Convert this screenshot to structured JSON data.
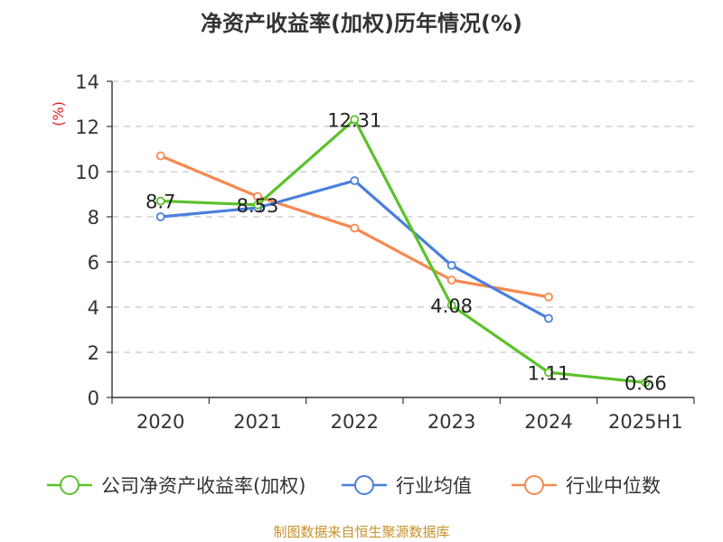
{
  "title": "净资产收益率(加权)历年情况(%)",
  "source": "制图数据来自恒生聚源数据库",
  "chart_data": {
    "type": "line",
    "title": "净资产收益率(加权)历年情况(%)",
    "ylabel": "(%)",
    "xlabel": "",
    "categories": [
      "2020",
      "2021",
      "2022",
      "2023",
      "2024",
      "2025H1"
    ],
    "ylim": [
      0,
      14
    ],
    "yticks": [
      0,
      2,
      4,
      6,
      8,
      10,
      12,
      14
    ],
    "grid": "horizontal dashed",
    "legend_position": "bottom",
    "series": [
      {
        "name": "公司净资产收益率(加权)",
        "color": "#5bc22a",
        "values": [
          8.7,
          8.53,
          12.31,
          4.08,
          1.11,
          0.66
        ],
        "labels": [
          "8.7",
          "8.53",
          "12.31",
          "4.08",
          "1.11",
          "0.66"
        ]
      },
      {
        "name": "行业均值",
        "color": "#4a7fdc",
        "values": [
          8.0,
          8.4,
          9.6,
          5.85,
          3.5,
          null
        ]
      },
      {
        "name": "行业中位数",
        "color": "#f5894f",
        "values": [
          10.7,
          8.9,
          7.5,
          5.2,
          4.45,
          null
        ]
      }
    ]
  }
}
